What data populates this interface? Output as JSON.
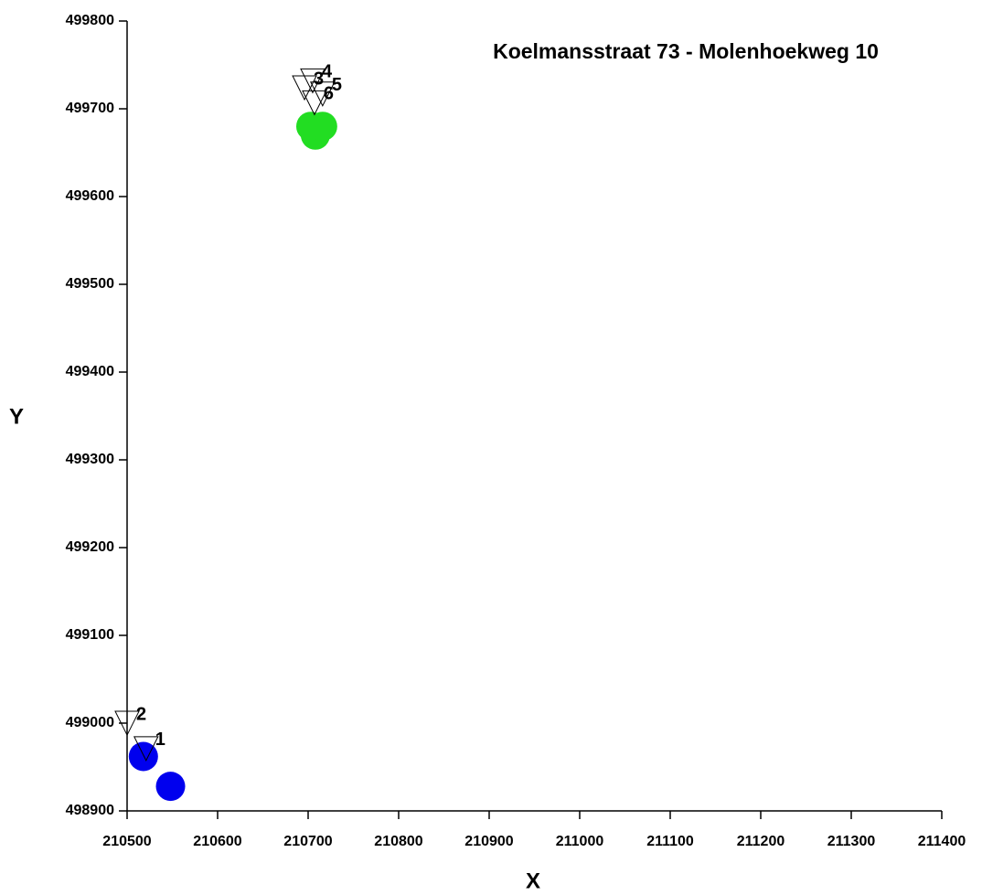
{
  "chart_data": {
    "type": "scatter",
    "title": "Koelmansstraat 73 - Molenhoekweg 10",
    "x_label": "X",
    "y_label": "Y",
    "xlim": [
      210500,
      211400
    ],
    "xticks": [
      210500,
      210600,
      210700,
      210800,
      210900,
      211000,
      211100,
      211200,
      211300,
      211400
    ],
    "ylim": [
      498900,
      499800
    ],
    "yticks": [
      498900,
      499000,
      499100,
      499200,
      499300,
      499400,
      499500,
      499600,
      499700,
      499800
    ],
    "series": [
      {
        "color": "#0000ee",
        "marker": "circle",
        "x": [
          210518,
          210548
        ],
        "values": [
          498962,
          498928
        ]
      },
      {
        "color": "#22dd22",
        "marker": "circle",
        "x": [
          210703,
          210712,
          210708,
          210716
        ],
        "values": [
          499680,
          499678,
          499670,
          499680
        ]
      },
      {
        "color": "#000000",
        "marker": "triangle-down",
        "x": [
          210521,
          210500,
          210696,
          210705,
          210716,
          210707
        ],
        "values": [
          498972,
          499001,
          499725,
          499733,
          499718,
          499708
        ],
        "labels": [
          "1",
          "2",
          "3",
          "4",
          "5",
          "6"
        ]
      }
    ]
  }
}
